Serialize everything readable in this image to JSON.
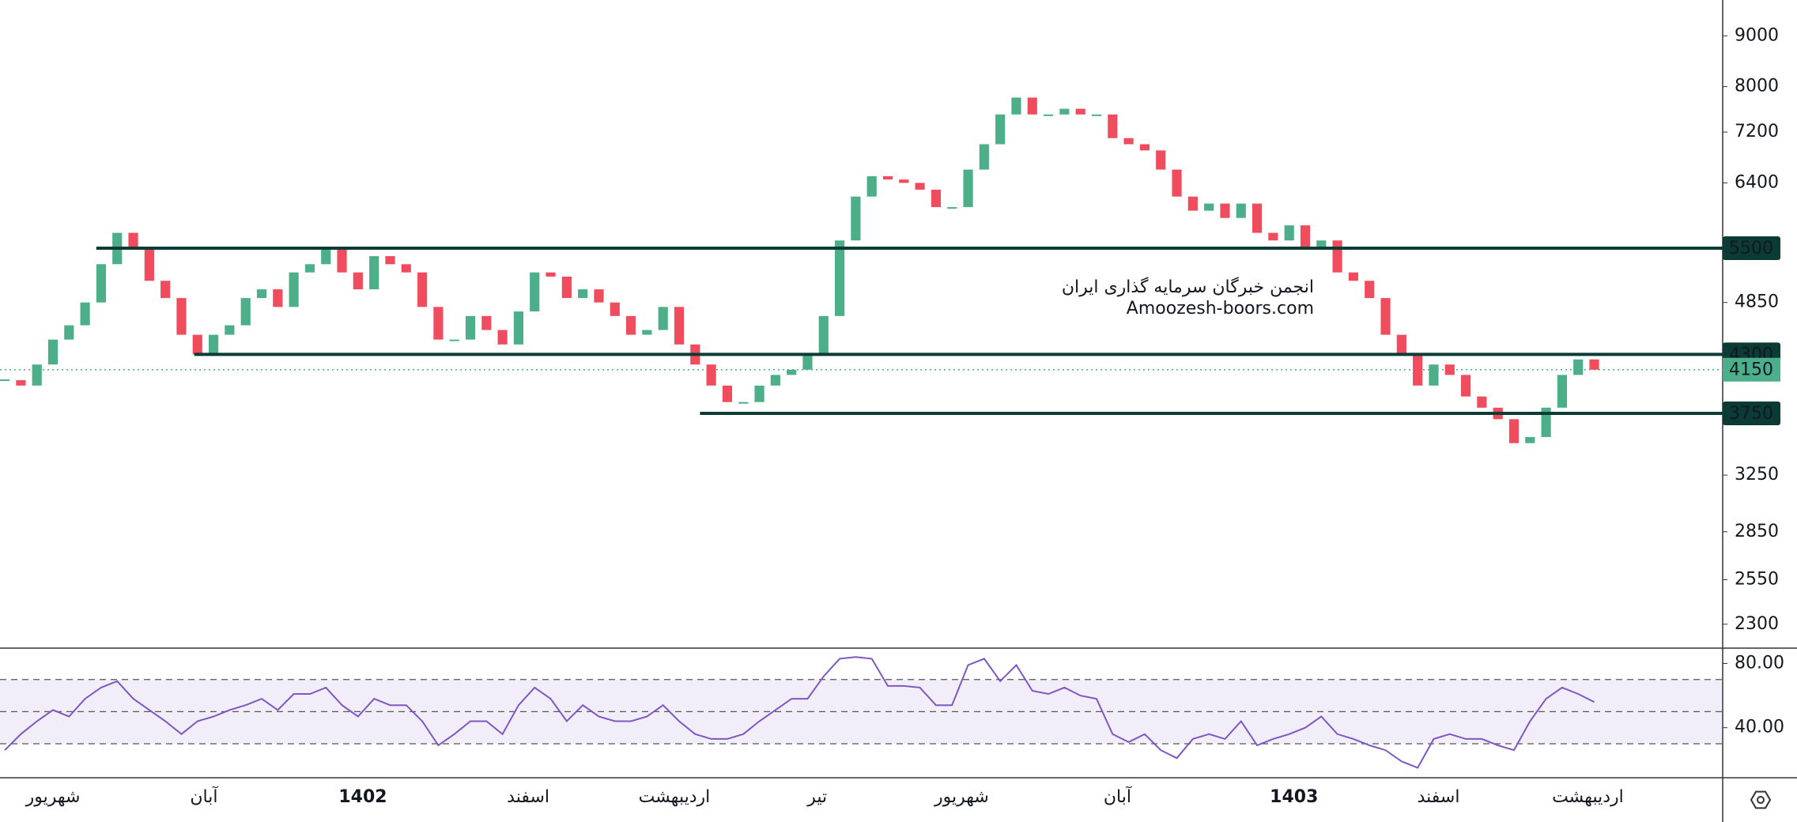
{
  "chart_data": [
    {
      "type": "candlestick",
      "closes": [
        4050,
        4000,
        4200,
        4450,
        4600,
        4850,
        5300,
        5700,
        5500,
        5100,
        4900,
        4500,
        4300,
        4500,
        4600,
        4900,
        5000,
        4800,
        5200,
        5300,
        5500,
        5200,
        5000,
        5400,
        5300,
        5200,
        4800,
        4450,
        4450,
        4700,
        4550,
        4400,
        4750,
        5200,
        5150,
        4900,
        5000,
        4850,
        4700,
        4500,
        4550,
        4800,
        4400,
        4200,
        4000,
        3850,
        3850,
        4000,
        4100,
        4150,
        4300,
        4700,
        5600,
        6200,
        6500,
        6450,
        6400,
        6300,
        6050,
        6050,
        6600,
        7000,
        7500,
        7800,
        7500,
        7500,
        7600,
        7500,
        7500,
        7100,
        7000,
        6900,
        6600,
        6200,
        6000,
        6100,
        5900,
        6100,
        5700,
        5600,
        5800,
        5500,
        5600,
        5200,
        5100,
        4900,
        4500,
        4300,
        4000,
        4200,
        4100,
        3900,
        3800,
        3700,
        3500,
        3550,
        3800,
        4100,
        4250,
        4150
      ],
      "up_color": "#4caf8a",
      "down_color": "#ef4d5e",
      "log_scale": true,
      "xlim": [
        0,
        107.3
      ],
      "ylim": [
        2180,
        9780
      ],
      "yticks": [
        2300,
        2550,
        2850,
        3250,
        4850,
        6400,
        7200,
        8000,
        9000
      ],
      "xticks": [
        {
          "value": 3.3,
          "label": "شهریور"
        },
        {
          "value": 12.7,
          "label": "آبان"
        },
        {
          "value": 22.6,
          "label": "1402"
        },
        {
          "value": 32.9,
          "label": "اسفند"
        },
        {
          "value": 42,
          "label": "اردیبهشت"
        },
        {
          "value": 50.9,
          "label": "تیر"
        },
        {
          "value": 59.9,
          "label": "شهریور"
        },
        {
          "value": 69.6,
          "label": "آبان"
        },
        {
          "value": 80.6,
          "label": "1403"
        },
        {
          "value": 89.6,
          "label": "اسفند"
        },
        {
          "value": 98.9,
          "label": "اردیبهشت"
        }
      ],
      "levels": [
        {
          "value": 5500,
          "from": 6
        },
        {
          "value": 4300,
          "from": 12.1
        },
        {
          "value": 3750,
          "from": 43.6
        }
      ],
      "level_color": "#0b3b35",
      "last_price": 4150,
      "last_color": "#4caf8a",
      "watermark": [
        "انجمن خبرگان سرمایه گذاری ایران",
        "Amoozesh-boors.com"
      ]
    },
    {
      "type": "line",
      "values": [
        26,
        36,
        44,
        51,
        47,
        58,
        65,
        69,
        58,
        51,
        44,
        36,
        44,
        47,
        51,
        54,
        58,
        51,
        61,
        61,
        65,
        54,
        47,
        58,
        54,
        54,
        44,
        29,
        36,
        44,
        44,
        36,
        54,
        65,
        58,
        44,
        54,
        47,
        44,
        44,
        47,
        54,
        44,
        36,
        33,
        33,
        36,
        44,
        51,
        58,
        58,
        72,
        83,
        84,
        83,
        66,
        66,
        65,
        54,
        54,
        79,
        83,
        69,
        79,
        63,
        61,
        65,
        60,
        58,
        36,
        31,
        36,
        26,
        21,
        33,
        36,
        33,
        44,
        29,
        33,
        36,
        40,
        47,
        36,
        33,
        29,
        26,
        19,
        15,
        33,
        36,
        33,
        33,
        29,
        26,
        44,
        58,
        65,
        61,
        56
      ],
      "color": "#7e57c2",
      "ylim": [
        9.3,
        88.6
      ],
      "yticks": [
        {
          "value": 80,
          "label": "80.00"
        },
        {
          "value": 40,
          "label": "40.00"
        }
      ],
      "bands": [
        30,
        50,
        70
      ]
    }
  ]
}
